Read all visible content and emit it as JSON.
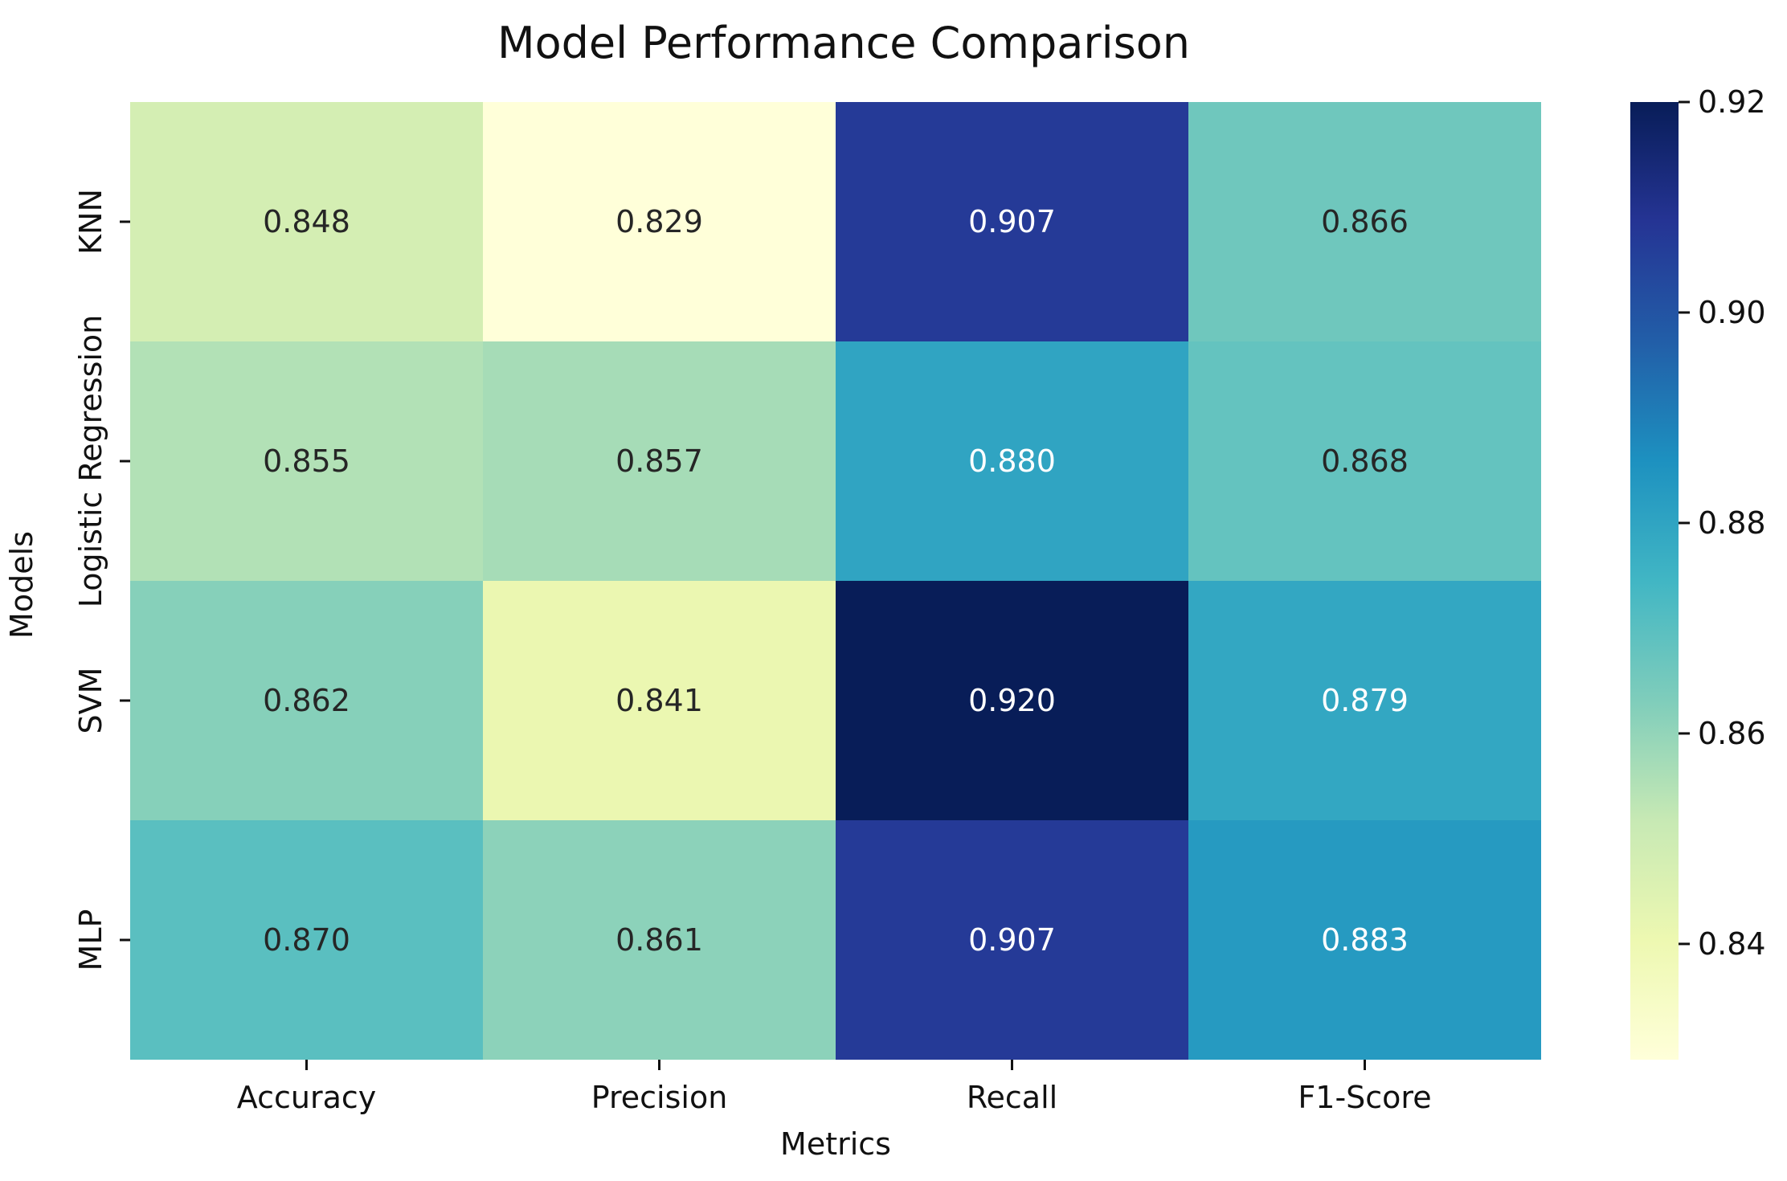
{
  "chart_data": {
    "type": "heatmap",
    "title": "Model Performance Comparison",
    "xlabel": "Metrics",
    "ylabel": "Models",
    "x_categories": [
      "Accuracy",
      "Precision",
      "Recall",
      "F1-Score"
    ],
    "y_categories": [
      "KNN",
      "Logistic Regression",
      "SVM",
      "MLP"
    ],
    "values": [
      [
        0.848,
        0.829,
        0.907,
        0.866
      ],
      [
        0.855,
        0.857,
        0.88,
        0.868
      ],
      [
        0.862,
        0.841,
        0.92,
        0.879
      ],
      [
        0.87,
        0.861,
        0.907,
        0.883
      ]
    ],
    "value_labels": [
      [
        "0.848",
        "0.829",
        "0.907",
        "0.866"
      ],
      [
        "0.855",
        "0.857",
        "0.880",
        "0.868"
      ],
      [
        "0.862",
        "0.841",
        "0.920",
        "0.879"
      ],
      [
        "0.870",
        "0.861",
        "0.907",
        "0.883"
      ]
    ],
    "vmin": 0.829,
    "vmax": 0.92,
    "colorbar": {
      "ticks": [
        0.84,
        0.86,
        0.88,
        0.9,
        0.92
      ],
      "tick_labels": [
        "0.84",
        "0.86",
        "0.88",
        "0.90",
        "0.92"
      ]
    },
    "colormap": "YlGnBu"
  }
}
